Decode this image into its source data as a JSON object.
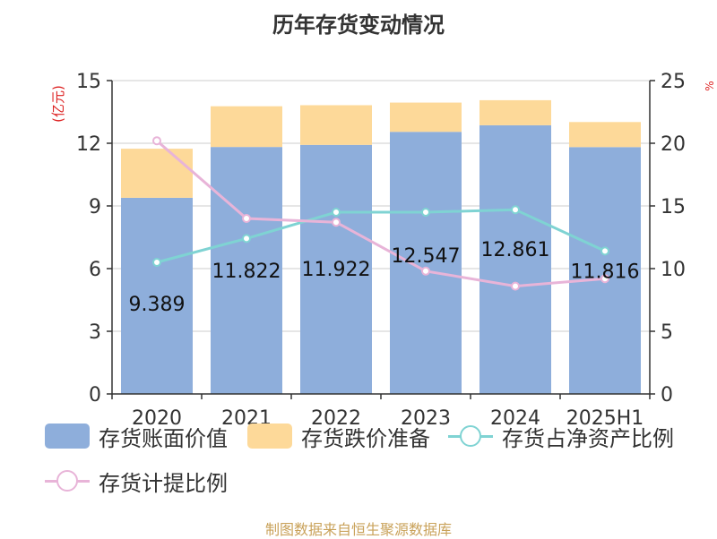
{
  "chart_data": {
    "type": "bar",
    "title": "历年存货变动情况",
    "categories": [
      "2020",
      "2021",
      "2022",
      "2023",
      "2024",
      "2025H1"
    ],
    "ylabel_left": "(亿元)",
    "ylabel_right": "%",
    "ylim_left": [
      0,
      15
    ],
    "yticks_left": [
      "0",
      "3",
      "6",
      "9",
      "12",
      "15"
    ],
    "ylim_right": [
      0,
      25
    ],
    "yticks_right": [
      "0",
      "5",
      "10",
      "15",
      "20",
      "25"
    ],
    "grid": true,
    "stacked": true,
    "legend_position": "bottom",
    "series": [
      {
        "name": "存货账面价值",
        "kind": "bar",
        "axis": "left",
        "color": "#8eaedb",
        "values": [
          9.389,
          11.822,
          11.922,
          12.547,
          12.861,
          11.816
        ],
        "labels": [
          "9.389",
          "11.822",
          "11.922",
          "12.547",
          "12.861",
          "11.816"
        ]
      },
      {
        "name": "存货跌价准备",
        "kind": "bar",
        "axis": "left",
        "color": "#fdd999",
        "values": [
          2.35,
          1.95,
          1.9,
          1.4,
          1.2,
          1.2
        ]
      },
      {
        "name": "存货占净资产比例",
        "kind": "line",
        "axis": "right",
        "color": "#7fd3d3",
        "values": [
          10.5,
          12.4,
          14.5,
          14.5,
          14.7,
          11.4
        ]
      },
      {
        "name": "存货计提比例",
        "kind": "line",
        "axis": "right",
        "color": "#e8b4d8",
        "values": [
          20.2,
          14.0,
          13.7,
          9.8,
          8.6,
          9.2
        ]
      }
    ]
  },
  "source": "制图数据来自恒生聚源数据库"
}
